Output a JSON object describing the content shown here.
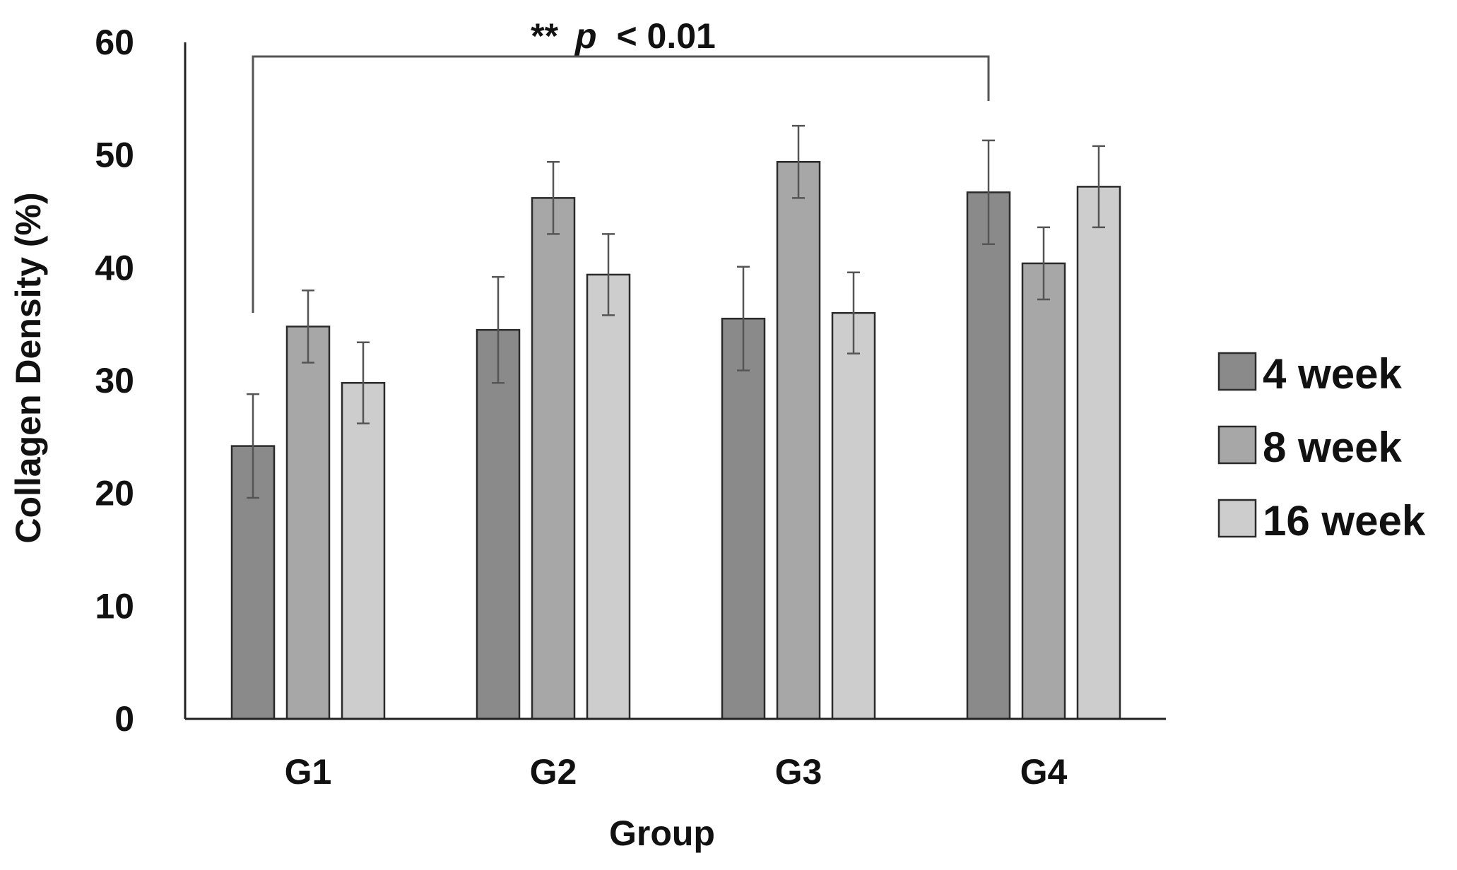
{
  "chart_data": {
    "type": "bar",
    "xlabel": "Group",
    "ylabel": "Collagen Density (%)",
    "ylim": [
      0,
      60
    ],
    "yticks": [
      "0",
      "10",
      "20",
      "30",
      "40",
      "50",
      "60"
    ],
    "categories": [
      "G1",
      "G2",
      "G3",
      "G4"
    ],
    "series": [
      {
        "name": "4 week",
        "color": "#8a8a8a",
        "values": [
          24.2,
          34.5,
          35.5,
          46.7
        ],
        "errors": [
          4.6,
          4.7,
          4.6,
          4.6
        ]
      },
      {
        "name": "8 week",
        "color": "#a7a7a7",
        "values": [
          34.8,
          46.2,
          49.4,
          40.4
        ],
        "errors": [
          3.2,
          3.2,
          3.2,
          3.2
        ]
      },
      {
        "name": "16 week",
        "color": "#cdcdcd",
        "values": [
          29.8,
          39.4,
          36.0,
          47.2
        ],
        "errors": [
          3.6,
          3.6,
          3.6,
          3.6
        ]
      }
    ],
    "legend_position": "right",
    "grid": false,
    "annotation": {
      "stars": "**",
      "p_symbol": "p",
      "text": "< 0.01",
      "from_category": "G1",
      "to_category": "G4"
    }
  }
}
